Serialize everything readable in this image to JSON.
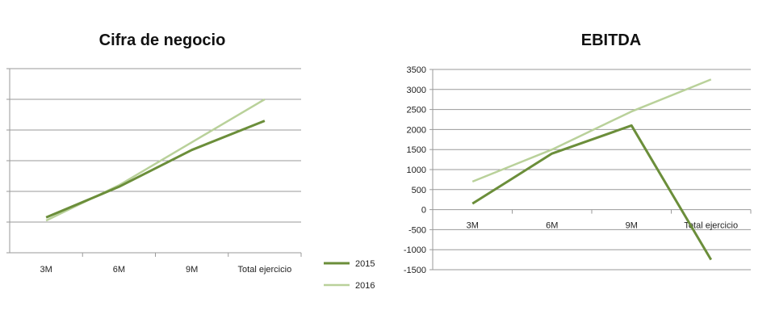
{
  "colors": {
    "series_2015": "#6b8e3a",
    "series_2016": "#b9d19a",
    "grid": "#9a9a9a"
  },
  "legend": {
    "placement": "center-bottom",
    "items": [
      "2015",
      "2016"
    ]
  },
  "chart_data": [
    {
      "type": "line",
      "title": "Cifra de negocio",
      "categories": [
        "3M",
        "6M",
        "9M",
        "Total ejercicio"
      ],
      "y_tick_labels": "none",
      "ylim": [
        0,
        6
      ],
      "grid": true,
      "series": [
        {
          "name": "2015",
          "values": [
            1.15,
            2.15,
            3.35,
            4.3
          ]
        },
        {
          "name": "2016",
          "values": [
            1.05,
            2.2,
            3.6,
            5.0
          ]
        }
      ]
    },
    {
      "type": "line",
      "title": "EBITDA",
      "categories": [
        "3M",
        "6M",
        "9M",
        "Total ejercicio"
      ],
      "ylim": [
        -1500,
        3500
      ],
      "yticks": [
        3500,
        3000,
        2500,
        2000,
        1500,
        1000,
        500,
        0,
        -500,
        -1000,
        -1500
      ],
      "grid": true,
      "series": [
        {
          "name": "2015",
          "values": [
            150,
            1400,
            2100,
            -1250
          ]
        },
        {
          "name": "2016",
          "values": [
            700,
            1500,
            2450,
            3250
          ]
        }
      ]
    }
  ]
}
